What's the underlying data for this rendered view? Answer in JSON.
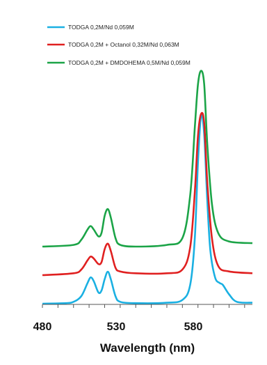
{
  "chart_data": {
    "type": "line",
    "title": "",
    "xlabel": "Wavelength (nm)",
    "ylabel": "",
    "xlim": [
      480,
      615
    ],
    "x_ticks": [
      "480",
      "530",
      "580"
    ],
    "x_tick_values": [
      480,
      530,
      580
    ],
    "y_ticks_visible": false,
    "legend_position": "top-left",
    "grid": false,
    "series": [
      {
        "name": "TODGA 0,2M/Nd 0,059M",
        "color": "#1ab0e2",
        "points": [
          [
            480,
            0
          ],
          [
            495,
            0.3
          ],
          [
            500,
            1
          ],
          [
            505,
            4
          ],
          [
            509,
            11
          ],
          [
            511,
            14
          ],
          [
            513,
            12
          ],
          [
            516,
            6
          ],
          [
            518,
            7
          ],
          [
            520,
            13
          ],
          [
            522,
            17
          ],
          [
            524,
            13
          ],
          [
            527,
            4
          ],
          [
            530,
            1
          ],
          [
            540,
            0.3
          ],
          [
            560,
            0.5
          ],
          [
            570,
            2
          ],
          [
            575,
            10
          ],
          [
            578,
            35
          ],
          [
            580,
            75
          ],
          [
            582,
            100
          ],
          [
            584,
            90
          ],
          [
            586,
            55
          ],
          [
            588,
            28
          ],
          [
            591,
            14
          ],
          [
            594,
            11
          ],
          [
            596,
            10
          ],
          [
            600,
            5
          ],
          [
            605,
            1
          ],
          [
            615,
            0.5
          ]
        ]
      },
      {
        "name": "TODGA 0,2M + Octanol 0,32M/Nd 0,063M",
        "color": "#e02020",
        "points": [
          [
            480,
            0
          ],
          [
            500,
            1
          ],
          [
            505,
            3
          ],
          [
            509,
            8
          ],
          [
            511,
            10
          ],
          [
            513,
            9
          ],
          [
            516,
            6
          ],
          [
            518,
            7
          ],
          [
            520,
            14
          ],
          [
            522,
            17
          ],
          [
            524,
            13
          ],
          [
            527,
            4
          ],
          [
            530,
            2
          ],
          [
            540,
            1
          ],
          [
            560,
            1
          ],
          [
            570,
            3
          ],
          [
            575,
            15
          ],
          [
            578,
            45
          ],
          [
            580,
            75
          ],
          [
            582,
            87
          ],
          [
            584,
            82
          ],
          [
            586,
            50
          ],
          [
            589,
            20
          ],
          [
            593,
            5
          ],
          [
            600,
            2
          ],
          [
            615,
            1
          ]
        ]
      },
      {
        "name": "TODGA 0,2M + DMDOHEMA 0,5M/Nd 0,059M",
        "color": "#1ba447",
        "points": [
          [
            480,
            0
          ],
          [
            500,
            1
          ],
          [
            505,
            4
          ],
          [
            509,
            10
          ],
          [
            511,
            12
          ],
          [
            513,
            10
          ],
          [
            516,
            6
          ],
          [
            518,
            8
          ],
          [
            520,
            18
          ],
          [
            522,
            22
          ],
          [
            524,
            17
          ],
          [
            527,
            5
          ],
          [
            530,
            1
          ],
          [
            540,
            0
          ],
          [
            560,
            1
          ],
          [
            570,
            5
          ],
          [
            575,
            30
          ],
          [
            578,
            70
          ],
          [
            580,
            95
          ],
          [
            582,
            103
          ],
          [
            584,
            95
          ],
          [
            586,
            60
          ],
          [
            589,
            25
          ],
          [
            593,
            8
          ],
          [
            600,
            3
          ],
          [
            615,
            2
          ]
        ]
      }
    ]
  }
}
